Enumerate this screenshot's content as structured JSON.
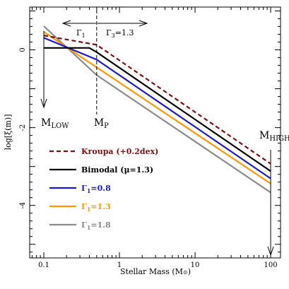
{
  "chart_data": {
    "type": "line",
    "xlabel": "Stellar Mass (M",
    "xlabel_symbol": "⊙",
    "xlabel_close": ")",
    "ylabel": "log[ξ(m)]",
    "x_log": true,
    "xlim": [
      0.065,
      135
    ],
    "ylim": [
      -5.35,
      1.1
    ],
    "x_ticks": [
      {
        "v": 0.1,
        "label": "0.1"
      },
      {
        "v": 1,
        "label": "1"
      },
      {
        "v": 10,
        "label": "10"
      },
      {
        "v": 100,
        "label": "100"
      }
    ],
    "y_ticks": [
      {
        "v": 0,
        "label": "0"
      },
      {
        "v": -2,
        "label": "-2"
      },
      {
        "v": -4,
        "label": "-4"
      }
    ],
    "series": [
      {
        "name": "Kroupa (+0.2dex)",
        "color": "#7a1010",
        "dash": true,
        "x": [
          0.1,
          0.5,
          100
        ],
        "y": [
          0.37,
          0.13,
          -2.93
        ]
      },
      {
        "name": "Bimodal (μ=1.3)",
        "color": "#000000",
        "dash": false,
        "x": [
          0.1,
          0.4,
          0.5,
          100
        ],
        "y": [
          0.05,
          0.05,
          -0.06,
          -3.12
        ]
      },
      {
        "name": "Γ₁=0.8",
        "color": "#1a1ad6",
        "dash": false,
        "x": [
          0.1,
          0.5,
          100
        ],
        "y": [
          0.31,
          -0.25,
          -3.31
        ]
      },
      {
        "name": "Γ₁=1.3",
        "color": "#ff9900",
        "dash": false,
        "x": [
          0.1,
          0.5,
          100
        ],
        "y": [
          0.46,
          -0.45,
          -3.44
        ]
      },
      {
        "name": "Γ₁=1.8",
        "color": "#8c8c8c",
        "dash": false,
        "x": [
          0.1,
          0.5,
          100
        ],
        "y": [
          0.61,
          -0.65,
          -3.67
        ]
      }
    ],
    "annotations": {
      "m_low": {
        "main": "M",
        "sub": "LOW",
        "x": 0.1
      },
      "m_p": {
        "main": "M",
        "sub": "P",
        "x": 0.5
      },
      "m_high": {
        "main": "M",
        "sub": "HIGH",
        "x": 100
      },
      "gamma1": {
        "main": "Γ",
        "sub": "1"
      },
      "gamma3": {
        "main": "Γ",
        "sub": "3",
        "suffix": "=1.3"
      }
    },
    "legend": {
      "placement": "lower-left",
      "entries": [
        {
          "text": "Kroupa (+0.2dex)",
          "color": "#7a1010",
          "dash": true
        },
        {
          "text": "Bimodal (μ=1.3)",
          "color": "#000000",
          "dash": false
        },
        {
          "main": "Γ",
          "sub": "1",
          "suffix": "=0.8",
          "color": "#1a1ad6",
          "dash": false
        },
        {
          "main": "Γ",
          "sub": "1",
          "suffix": "=1.3",
          "color": "#ff9900",
          "dash": false
        },
        {
          "main": "Γ",
          "sub": "1",
          "suffix": "=1.8",
          "color": "#8c8c8c",
          "dash": false
        }
      ]
    }
  }
}
